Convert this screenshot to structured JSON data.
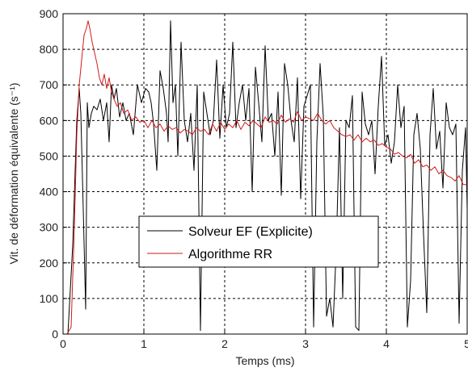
{
  "chart_data": {
    "type": "line",
    "title": "",
    "xlabel": "Temps (ms)",
    "ylabel": "Vit. de déformation équivalente (s⁻¹)",
    "xlim": [
      0,
      5
    ],
    "ylim": [
      0,
      900
    ],
    "xticks": [
      "0",
      "1",
      "2",
      "3",
      "4",
      "5"
    ],
    "yticks": [
      "0",
      "100",
      "200",
      "300",
      "400",
      "500",
      "600",
      "700",
      "800",
      "900"
    ],
    "grid": true,
    "legend_position": "lower-center",
    "series": [
      {
        "name": "Solveur EF (Explicite)",
        "color": "#000000",
        "x": [
          0.0,
          0.06,
          0.12,
          0.17,
          0.2,
          0.22,
          0.25,
          0.28,
          0.3,
          0.32,
          0.35,
          0.38,
          0.42,
          0.46,
          0.5,
          0.54,
          0.57,
          0.6,
          0.63,
          0.66,
          0.7,
          0.74,
          0.78,
          0.82,
          0.87,
          0.92,
          0.97,
          1.02,
          1.06,
          1.09,
          1.12,
          1.16,
          1.2,
          1.24,
          1.28,
          1.3,
          1.33,
          1.36,
          1.39,
          1.42,
          1.46,
          1.5,
          1.54,
          1.58,
          1.62,
          1.66,
          1.7,
          1.74,
          1.78,
          1.82,
          1.86,
          1.9,
          1.94,
          1.98,
          2.02,
          2.06,
          2.1,
          2.14,
          2.18,
          2.22,
          2.26,
          2.3,
          2.34,
          2.38,
          2.42,
          2.46,
          2.5,
          2.54,
          2.58,
          2.62,
          2.66,
          2.7,
          2.74,
          2.78,
          2.82,
          2.86,
          2.9,
          2.94,
          2.98,
          3.02,
          3.06,
          3.1,
          3.14,
          3.18,
          3.22,
          3.26,
          3.3,
          3.34,
          3.38,
          3.42,
          3.46,
          3.5,
          3.54,
          3.58,
          3.62,
          3.66,
          3.7,
          3.74,
          3.78,
          3.82,
          3.86,
          3.9,
          3.94,
          3.98,
          4.02,
          4.06,
          4.1,
          4.14,
          4.18,
          4.22,
          4.26,
          4.3,
          4.34,
          4.38,
          4.42,
          4.46,
          4.5,
          4.54,
          4.58,
          4.62,
          4.66,
          4.7,
          4.74,
          4.78,
          4.82,
          4.86,
          4.9,
          4.94,
          4.98,
          5.0
        ],
        "y": [
          0,
          0,
          250,
          600,
          690,
          620,
          350,
          70,
          650,
          580,
          620,
          640,
          630,
          660,
          600,
          650,
          540,
          700,
          660,
          690,
          610,
          650,
          600,
          620,
          560,
          700,
          650,
          690,
          680,
          650,
          590,
          460,
          740,
          690,
          620,
          540,
          880,
          650,
          700,
          500,
          820,
          600,
          540,
          620,
          460,
          700,
          10,
          680,
          620,
          560,
          600,
          770,
          550,
          700,
          580,
          620,
          820,
          580,
          650,
          700,
          600,
          690,
          400,
          750,
          650,
          540,
          810,
          600,
          620,
          500,
          680,
          390,
          760,
          700,
          600,
          540,
          720,
          380,
          640,
          670,
          700,
          20,
          540,
          760,
          610,
          50,
          100,
          20,
          240,
          580,
          100,
          600,
          580,
          670,
          20,
          10,
          680,
          590,
          560,
          600,
          450,
          640,
          780,
          530,
          560,
          480,
          540,
          700,
          580,
          640,
          20,
          150,
          560,
          620,
          520,
          280,
          60,
          560,
          690,
          520,
          570,
          410,
          650,
          580,
          560,
          590,
          30,
          460,
          580,
          350
        ]
      },
      {
        "name": "Algorithme RR",
        "color": "#d11a1a",
        "x": [
          0.0,
          0.05,
          0.1,
          0.14,
          0.17,
          0.2,
          0.23,
          0.26,
          0.29,
          0.31,
          0.33,
          0.36,
          0.39,
          0.42,
          0.45,
          0.48,
          0.51,
          0.54,
          0.57,
          0.6,
          0.63,
          0.67,
          0.71,
          0.75,
          0.8,
          0.85,
          0.9,
          0.95,
          1.0,
          1.05,
          1.1,
          1.15,
          1.2,
          1.25,
          1.3,
          1.35,
          1.4,
          1.45,
          1.5,
          1.55,
          1.6,
          1.65,
          1.7,
          1.75,
          1.8,
          1.85,
          1.9,
          1.95,
          2.0,
          2.05,
          2.1,
          2.15,
          2.2,
          2.25,
          2.3,
          2.35,
          2.4,
          2.45,
          2.5,
          2.55,
          2.6,
          2.65,
          2.7,
          2.75,
          2.8,
          2.85,
          2.9,
          2.95,
          3.0,
          3.05,
          3.1,
          3.15,
          3.2,
          3.25,
          3.3,
          3.35,
          3.4,
          3.45,
          3.5,
          3.55,
          3.6,
          3.65,
          3.7,
          3.75,
          3.8,
          3.85,
          3.9,
          3.95,
          4.0,
          4.05,
          4.1,
          4.15,
          4.2,
          4.25,
          4.3,
          4.35,
          4.4,
          4.45,
          4.5,
          4.55,
          4.6,
          4.65,
          4.7,
          4.75,
          4.8,
          4.85,
          4.9,
          4.95,
          5.0
        ],
        "y": [
          0,
          0,
          20,
          300,
          560,
          700,
          770,
          840,
          860,
          880,
          860,
          820,
          790,
          760,
          720,
          700,
          730,
          690,
          720,
          680,
          660,
          640,
          650,
          620,
          630,
          600,
          610,
          595,
          600,
          580,
          600,
          580,
          590,
          570,
          585,
          575,
          580,
          565,
          575,
          570,
          560,
          580,
          570,
          575,
          560,
          590,
          570,
          595,
          575,
          590,
          580,
          600,
          575,
          595,
          585,
          600,
          590,
          580,
          610,
          595,
          600,
          590,
          615,
          595,
          605,
          595,
          625,
          600,
          610,
          605,
          600,
          620,
          600,
          590,
          600,
          580,
          570,
          560,
          555,
          560,
          545,
          560,
          540,
          550,
          540,
          545,
          530,
          535,
          525,
          520,
          505,
          510,
          500,
          495,
          505,
          480,
          490,
          470,
          475,
          460,
          470,
          450,
          460,
          445,
          440,
          430,
          445,
          420,
          420
        ]
      }
    ]
  }
}
